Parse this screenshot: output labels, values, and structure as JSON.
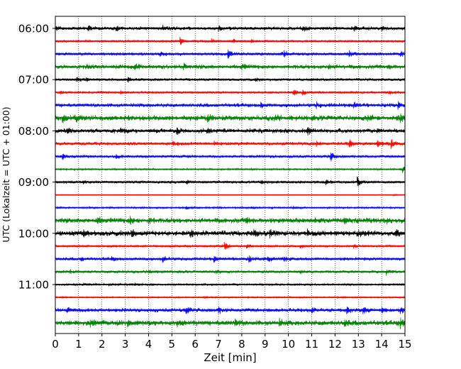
{
  "chart_data": {
    "type": "line",
    "subtype": "helicorder",
    "xlabel": "Zeit  [min]",
    "ylabel": "UTC (Lokalzeit = UTC + 01:00)",
    "xlim": [
      0,
      15
    ],
    "x_ticks": [
      "0",
      "1",
      "2",
      "3",
      "4",
      "5",
      "6",
      "7",
      "8",
      "9",
      "10",
      "11",
      "12",
      "13",
      "14",
      "15"
    ],
    "y_tick_labels": [
      "06:00",
      "07:00",
      "08:00",
      "09:00",
      "10:00",
      "11:00"
    ],
    "grid": "vertical-dotted",
    "trace_interval_min": 15,
    "colors": [
      "#000000",
      "#ff0000",
      "#0000ff",
      "#008000"
    ],
    "traces": [
      {
        "start": "06:00",
        "color": "#000000",
        "noise": 2,
        "events": [
          [
            0.05,
            2
          ],
          [
            1.4,
            4
          ],
          [
            2.6,
            3
          ],
          [
            4.6,
            3
          ],
          [
            7.0,
            3
          ],
          [
            10.6,
            4
          ],
          [
            12.8,
            5
          ],
          [
            14.0,
            2
          ]
        ]
      },
      {
        "start": "06:15",
        "color": "#ff0000",
        "noise": 1.2,
        "events": [
          [
            5.35,
            6
          ],
          [
            6.7,
            3
          ],
          [
            7.6,
            3
          ],
          [
            8.4,
            3
          ]
        ]
      },
      {
        "start": "06:30",
        "color": "#0000ff",
        "noise": 1.8,
        "events": [
          [
            7.4,
            6
          ],
          [
            9.8,
            5
          ],
          [
            12.6,
            4
          ],
          [
            14.8,
            4
          ],
          [
            4.5,
            3
          ]
        ]
      },
      {
        "start": "06:45",
        "color": "#008000",
        "noise": 2.5,
        "events": [
          [
            1.3,
            3
          ],
          [
            3.4,
            3
          ],
          [
            5.5,
            4
          ],
          [
            8.0,
            3
          ],
          [
            11.7,
            3
          ],
          [
            14.3,
            3
          ]
        ]
      },
      {
        "start": "07:00",
        "color": "#000000",
        "noise": 1.5,
        "events": [
          [
            0.9,
            4
          ],
          [
            1.3,
            3
          ],
          [
            3.1,
            3
          ],
          [
            8.6,
            2
          ],
          [
            11.0,
            2
          ]
        ]
      },
      {
        "start": "07:15",
        "color": "#ff0000",
        "noise": 1.4,
        "events": [
          [
            0.2,
            2
          ],
          [
            2.8,
            2
          ],
          [
            10.2,
            5
          ],
          [
            10.6,
            3
          ],
          [
            14.3,
            3
          ]
        ]
      },
      {
        "start": "07:30",
        "color": "#0000ff",
        "noise": 2.2,
        "events": [
          [
            8.8,
            4
          ],
          [
            11.2,
            3
          ],
          [
            12.8,
            4
          ],
          [
            14.7,
            4
          ]
        ]
      },
      {
        "start": "07:45",
        "color": "#008000",
        "noise": 3,
        "events": [
          [
            0.3,
            5
          ],
          [
            0.9,
            4
          ],
          [
            6.5,
            5
          ],
          [
            9.4,
            4
          ],
          [
            13.4,
            4
          ],
          [
            14.8,
            5
          ]
        ]
      },
      {
        "start": "08:00",
        "color": "#000000",
        "noise": 2.5,
        "events": [
          [
            0.5,
            4
          ],
          [
            2.8,
            3
          ],
          [
            5.2,
            4
          ],
          [
            6.5,
            3
          ],
          [
            10.8,
            6
          ],
          [
            13.8,
            3
          ]
        ]
      },
      {
        "start": "08:15",
        "color": "#ff0000",
        "noise": 2,
        "events": [
          [
            5.0,
            3
          ],
          [
            6.8,
            3
          ],
          [
            11.2,
            3
          ],
          [
            12.6,
            6
          ],
          [
            13.8,
            5
          ],
          [
            14.4,
            6
          ]
        ]
      },
      {
        "start": "08:30",
        "color": "#0000ff",
        "noise": 1.6,
        "events": [
          [
            0.3,
            4
          ],
          [
            2.6,
            3
          ],
          [
            11.8,
            7
          ]
        ]
      },
      {
        "start": "08:45",
        "color": "#008000",
        "noise": 1,
        "events": [
          [
            14.9,
            5
          ]
        ]
      },
      {
        "start": "09:00",
        "color": "#000000",
        "noise": 1.6,
        "events": [
          [
            1.2,
            3
          ],
          [
            5.6,
            3
          ],
          [
            8.8,
            2
          ],
          [
            11.6,
            3
          ],
          [
            12.95,
            7
          ]
        ]
      },
      {
        "start": "09:15",
        "color": "#ff0000",
        "noise": 0.4,
        "events": [
          [
            14.5,
            1
          ]
        ]
      },
      {
        "start": "09:30",
        "color": "#0000ff",
        "noise": 1,
        "events": [
          [
            5.6,
            2
          ],
          [
            8.4,
            2
          ],
          [
            10.2,
            2
          ]
        ]
      },
      {
        "start": "09:45",
        "color": "#008000",
        "noise": 3,
        "events": [
          [
            1.8,
            4
          ],
          [
            3.2,
            5
          ],
          [
            4.0,
            4
          ],
          [
            8.2,
            4
          ],
          [
            12.4,
            3
          ],
          [
            14.2,
            3
          ]
        ]
      },
      {
        "start": "10:00",
        "color": "#000000",
        "noise": 3,
        "events": [
          [
            1.2,
            4
          ],
          [
            3.25,
            7
          ],
          [
            5.8,
            4
          ],
          [
            8.5,
            4
          ],
          [
            9.2,
            5
          ],
          [
            10.8,
            4
          ],
          [
            13.0,
            4
          ],
          [
            14.6,
            4
          ]
        ]
      },
      {
        "start": "10:15",
        "color": "#ff0000",
        "noise": 1.3,
        "events": [
          [
            2.4,
            2
          ],
          [
            7.25,
            8
          ],
          [
            8.2,
            3
          ],
          [
            10.5,
            3
          ],
          [
            12.8,
            2
          ]
        ]
      },
      {
        "start": "10:30",
        "color": "#0000ff",
        "noise": 1.8,
        "events": [
          [
            1.1,
            3
          ],
          [
            2.4,
            3
          ],
          [
            4.6,
            5
          ],
          [
            6.8,
            4
          ],
          [
            8.3,
            4
          ],
          [
            9.1,
            5
          ],
          [
            9.8,
            4
          ]
        ]
      },
      {
        "start": "10:45",
        "color": "#008000",
        "noise": 1.6,
        "events": [
          [
            0.6,
            3
          ],
          [
            4.0,
            4
          ],
          [
            6.9,
            3
          ],
          [
            10.5,
            3
          ],
          [
            14.2,
            4
          ]
        ]
      },
      {
        "start": "11:00",
        "color": "#000000",
        "noise": 1.1,
        "events": [
          [
            1.2,
            2
          ],
          [
            2.3,
            2
          ],
          [
            3.4,
            2
          ]
        ]
      },
      {
        "start": "11:15",
        "color": "#ff0000",
        "noise": 0.8,
        "events": [
          [
            0.3,
            1
          ],
          [
            6.4,
            1
          ],
          [
            12.3,
            1
          ]
        ]
      },
      {
        "start": "11:30",
        "color": "#0000ff",
        "noise": 2.2,
        "events": [
          [
            0.5,
            5
          ],
          [
            5.6,
            5
          ],
          [
            7.0,
            4
          ],
          [
            11.0,
            4
          ],
          [
            12.5,
            4
          ],
          [
            13.2,
            5
          ],
          [
            14.0,
            4
          ],
          [
            14.8,
            5
          ]
        ]
      },
      {
        "start": "11:45",
        "color": "#008000",
        "noise": 3,
        "events": [
          [
            1.5,
            5
          ],
          [
            3.1,
            4
          ],
          [
            5.2,
            4
          ],
          [
            7.7,
            4
          ],
          [
            9.6,
            4
          ],
          [
            12.4,
            4
          ],
          [
            14.8,
            6
          ]
        ]
      }
    ]
  }
}
